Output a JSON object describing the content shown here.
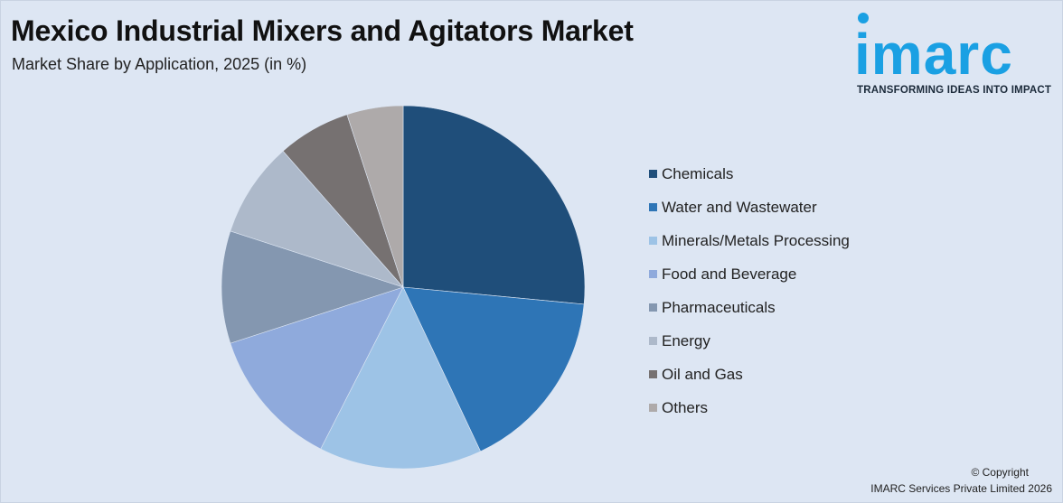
{
  "header": {
    "title": "Mexico Industrial Mixers and Agitators Market",
    "subtitle": "Market Share by Application, 2025 (in %)"
  },
  "logo": {
    "wordmark": "imarc",
    "tagline": "TRANSFORMING IDEAS INTO IMPACT",
    "color": "#1aa0e3"
  },
  "chart_data": {
    "type": "pie",
    "title": "Mexico Industrial Mixers and Agitators Market",
    "subtitle": "Market Share by Application, 2025 (in %)",
    "legend_position": "right",
    "start_angle": "12 o'clock",
    "direction": "clockwise",
    "categories": [
      "Chemicals",
      "Water and Wastewater",
      "Minerals/Metals Processing",
      "Food and Beverage",
      "Pharmaceuticals",
      "Energy",
      "Oil and Gas",
      "Others"
    ],
    "values": [
      26.5,
      16.5,
      14.5,
      12.5,
      10.0,
      8.5,
      6.5,
      5.0
    ],
    "colors": [
      "#1f4e7a",
      "#2e75b6",
      "#9dc3e6",
      "#8faadc",
      "#8497b0",
      "#adb9ca",
      "#767171",
      "#aeaaaa"
    ]
  },
  "footer": {
    "copyright": "© Copyright",
    "company": "IMARC Services Private Limited 2026"
  }
}
